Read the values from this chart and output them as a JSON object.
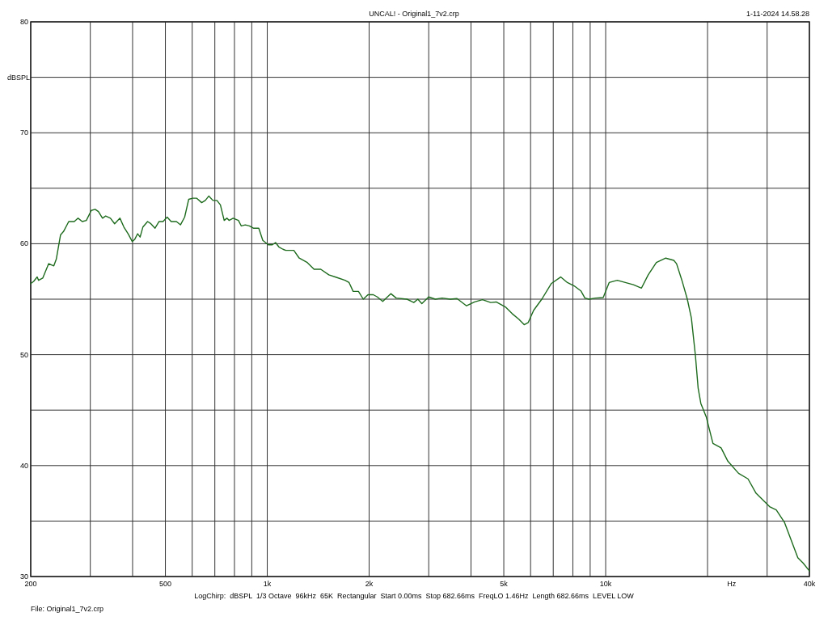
{
  "chart_data": {
    "type": "line",
    "title": "UNCAL! - Original1_7v2.crp",
    "xlabel": "Hz",
    "ylabel": "dBSPL",
    "log": "x",
    "grid": true,
    "xlim": [
      200,
      40000
    ],
    "ylim": [
      30,
      80
    ],
    "xticks": [
      200,
      {
        "value": 300,
        "label": null
      },
      {
        "value": 400,
        "label": null
      },
      500,
      {
        "value": 600,
        "label": null
      },
      {
        "value": 700,
        "label": null
      },
      {
        "value": 800,
        "label": null
      },
      {
        "value": 900,
        "label": null
      },
      {
        "value": 1000,
        "label": "1k"
      },
      {
        "value": 2000,
        "label": "2k"
      },
      {
        "value": 3000,
        "label": null
      },
      {
        "value": 4000,
        "label": null
      },
      {
        "value": 5000,
        "label": "5k"
      },
      {
        "value": 6000,
        "label": null
      },
      {
        "value": 7000,
        "label": null
      },
      {
        "value": 8000,
        "label": null
      },
      {
        "value": 9000,
        "label": null
      },
      {
        "value": 10000,
        "label": "10k"
      },
      {
        "value": 20000,
        "label": null
      },
      {
        "value": 30000,
        "label": null
      },
      {
        "value": 40000,
        "label": "40k"
      }
    ],
    "yticks": [
      30,
      {
        "value": 35,
        "label": null
      },
      40,
      {
        "value": 45,
        "label": null
      },
      50,
      {
        "value": 55,
        "label": null
      },
      60,
      {
        "value": 65,
        "label": null
      },
      70,
      {
        "value": 75,
        "label": null
      },
      80
    ],
    "annotations": [
      "1-11-2024 14.58.28",
      "LogChirp:  dBSPL  1/3 Octave  96kHz  65K  Rectangular  Start 0.00ms  Stop 682.66ms  FreqLO 1.46Hz  Length 682.66ms  LEVEL LOW",
      "File: Original1_7v2.crp"
    ],
    "series": [
      {
        "color": "#1e6b1e",
        "x": [
          200,
          204,
          209,
          211,
          217,
          226,
          234,
          238,
          245,
          250,
          257,
          259,
          269,
          276,
          284,
          292,
          302,
          310,
          317,
          326,
          333,
          344,
          354,
          367,
          377,
          388,
          399,
          406,
          414,
          421,
          429,
          443,
          453,
          466,
          479,
          492,
          506,
          520,
          539,
          554,
          570,
          586,
          602,
          619,
          640,
          656,
          672,
          691,
          710,
          727,
          746,
          760,
          771,
          793,
          822,
          838,
          861,
          885,
          910,
          944,
          970,
          1007,
          1035,
          1058,
          1083,
          1113,
          1134,
          1198,
          1243,
          1313,
          1375,
          1439,
          1520,
          1607,
          1697,
          1745,
          1794,
          1860,
          1922,
          1984,
          2058,
          2115,
          2194,
          2318,
          2405,
          2588,
          2710,
          2786,
          2863,
          2998,
          3139,
          3287,
          3474,
          3637,
          3880,
          4100,
          4325,
          4574,
          4748,
          5054,
          5291,
          5538,
          5744,
          5906,
          6127,
          6476,
          6904,
          7363,
          7707,
          8069,
          8447,
          8683,
          8925,
          9343,
          9834,
          10240,
          10820,
          11430,
          12080,
          12760,
          13360,
          14120,
          15050,
          15900,
          16200,
          16800,
          17430,
          17920,
          18420,
          18760,
          19110,
          19820,
          20750,
          21930,
          22960,
          24700,
          26340,
          27830,
          30500,
          31930,
          33740,
          36970,
          38360,
          40000
        ],
        "values": [
          56.4,
          56.6,
          57.0,
          56.7,
          56.9,
          58.2,
          58.0,
          58.6,
          60.8,
          61.1,
          61.8,
          62.0,
          62.0,
          62.3,
          62.0,
          62.1,
          63.0,
          63.1,
          62.9,
          62.3,
          62.5,
          62.3,
          61.8,
          62.3,
          61.5,
          60.9,
          60.2,
          60.4,
          60.9,
          60.6,
          61.5,
          62.0,
          61.8,
          61.4,
          62.0,
          62.0,
          62.4,
          62.0,
          62.0,
          61.7,
          62.4,
          64.0,
          64.1,
          64.1,
          63.7,
          63.9,
          64.3,
          63.9,
          63.9,
          63.5,
          62.1,
          62.3,
          62.1,
          62.3,
          62.1,
          61.6,
          61.7,
          61.6,
          61.4,
          61.4,
          60.3,
          59.9,
          59.9,
          60.1,
          59.7,
          59.5,
          59.4,
          59.4,
          58.7,
          58.3,
          57.7,
          57.7,
          57.2,
          56.95,
          56.7,
          56.5,
          55.7,
          55.7,
          55.0,
          55.4,
          55.4,
          55.2,
          54.8,
          55.5,
          55.1,
          55.0,
          54.7,
          55.0,
          54.6,
          55.2,
          55.0,
          55.1,
          55.0,
          55.05,
          54.4,
          54.75,
          54.95,
          54.7,
          54.75,
          54.3,
          53.7,
          53.2,
          52.7,
          52.9,
          54.0,
          55.0,
          56.4,
          57.0,
          56.5,
          56.2,
          55.75,
          55.1,
          55.0,
          55.1,
          55.15,
          56.5,
          56.7,
          56.5,
          56.3,
          56.0,
          57.2,
          58.3,
          58.7,
          58.5,
          58.2,
          56.7,
          55.0,
          53.3,
          49.9,
          47.0,
          45.6,
          44.4,
          42.0,
          41.6,
          40.4,
          39.3,
          38.8,
          37.5,
          36.3,
          36.0,
          34.9,
          31.7,
          31.2,
          30.5
        ]
      }
    ]
  }
}
